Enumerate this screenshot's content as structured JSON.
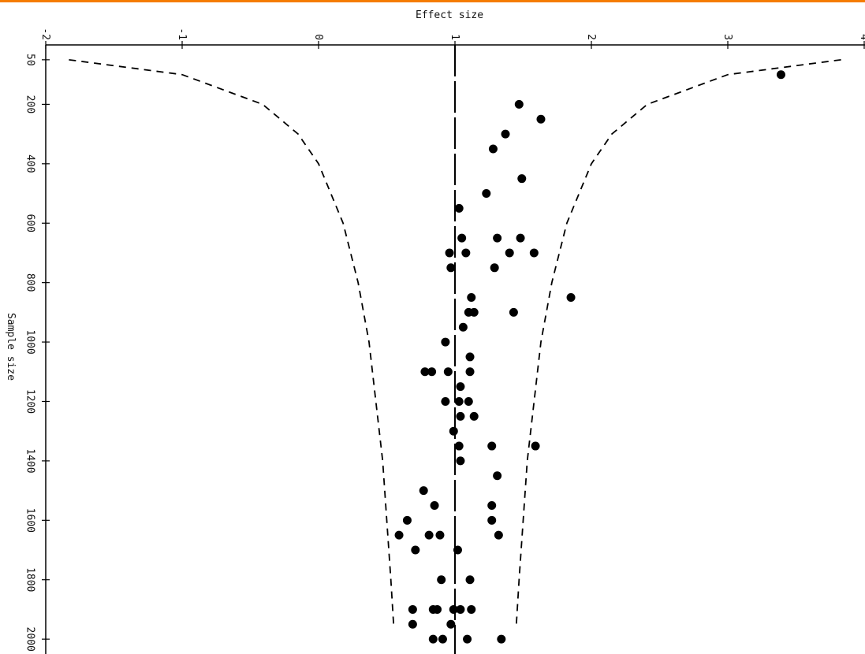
{
  "chart_data": {
    "type": "scatter",
    "title": "Effect size",
    "y_label": "Sample size",
    "xlim": [
      -2,
      4
    ],
    "xticks": [
      -2,
      -1,
      0,
      1,
      2,
      3,
      4
    ],
    "ylim": [
      0,
      2050
    ],
    "yticks": [
      50,
      200,
      400,
      600,
      800,
      1000,
      1200,
      1400,
      1600,
      1800,
      2000
    ],
    "reference_line": 1,
    "color": "#000000",
    "curves": [
      {
        "x": [
          -1.83,
          -1.0,
          -0.41,
          -0.15,
          0,
          0.18,
          0.29,
          0.37,
          0.42,
          0.47,
          0.5,
          0.53,
          0.55
        ],
        "y": [
          50,
          100,
          200,
          300,
          400,
          600,
          800,
          1000,
          1200,
          1400,
          1600,
          1800,
          1950
        ]
      },
      {
        "x": [
          3.83,
          3.0,
          2.41,
          2.15,
          2.0,
          1.82,
          1.71,
          1.63,
          1.58,
          1.53,
          1.5,
          1.47,
          1.45
        ],
        "y": [
          50,
          100,
          200,
          300,
          400,
          600,
          800,
          1000,
          1200,
          1400,
          1600,
          1800,
          1950
        ]
      }
    ],
    "points": {
      "x": [
        3.39,
        1.47,
        1.63,
        1.37,
        1.28,
        1.49,
        1.23,
        1.03,
        1.05,
        1.31,
        1.48,
        0.96,
        1.08,
        1.4,
        1.58,
        0.97,
        1.29,
        1.85,
        1.12,
        1.1,
        1.14,
        1.43,
        1.06,
        0.93,
        1.11,
        0.78,
        0.83,
        0.95,
        1.11,
        1.04,
        0.93,
        1.03,
        1.1,
        1.04,
        1.14,
        0.99,
        1.03,
        1.27,
        1.59,
        1.04,
        1.31,
        0.77,
        0.85,
        1.27,
        0.65,
        1.27,
        0.59,
        0.81,
        0.89,
        1.32,
        0.71,
        1.02,
        0.9,
        1.11,
        0.69,
        0.84,
        0.87,
        0.99,
        1.04,
        1.12,
        0.69,
        0.97,
        0.84,
        0.91,
        1.09,
        1.34
      ],
      "y": [
        100,
        200,
        250,
        300,
        350,
        450,
        500,
        550,
        650,
        650,
        650,
        700,
        700,
        700,
        700,
        750,
        750,
        850,
        850,
        900,
        900,
        900,
        950,
        1000,
        1050,
        1100,
        1100,
        1100,
        1100,
        1150,
        1200,
        1200,
        1200,
        1250,
        1250,
        1300,
        1350,
        1350,
        1350,
        1400,
        1450,
        1500,
        1550,
        1550,
        1600,
        1600,
        1650,
        1650,
        1650,
        1650,
        1700,
        1700,
        1800,
        1800,
        1900,
        1900,
        1900,
        1900,
        1900,
        1900,
        1950,
        1950,
        2000,
        2000,
        2000,
        2000
      ]
    }
  }
}
